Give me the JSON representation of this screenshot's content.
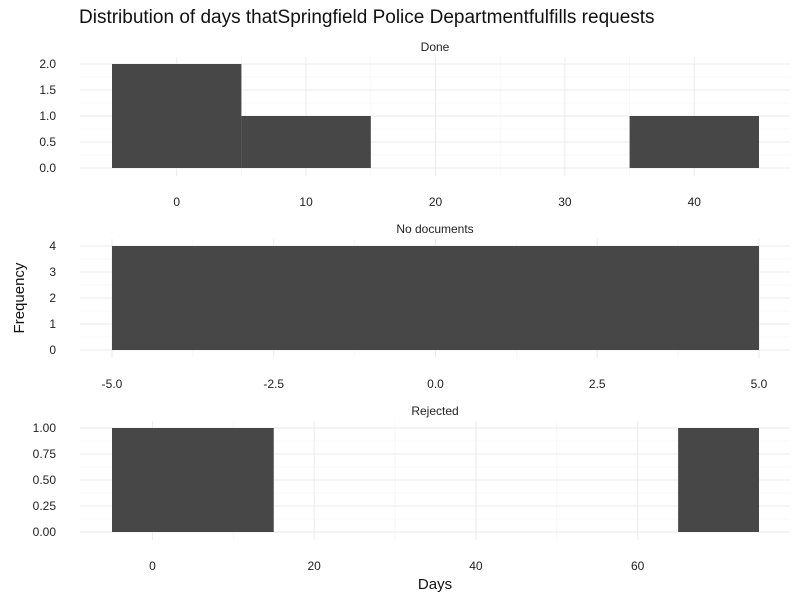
{
  "chart_data": {
    "type": "bar",
    "subtype": "faceted-histogram",
    "title": "Distribution of days thatSpringfield Police Departmentfulfills requests",
    "xlabel": "Days",
    "ylabel": "Frequency",
    "bar_color": "#474747",
    "grid": true,
    "grid_color": "#ebebeb",
    "facets": [
      {
        "name": "Done",
        "bins": [
          {
            "x_start": -5,
            "x_end": 5,
            "count": 2
          },
          {
            "x_start": 5,
            "x_end": 15,
            "count": 1
          },
          {
            "x_start": 35,
            "x_end": 45,
            "count": 1
          }
        ],
        "xlim": [
          -5,
          45
        ],
        "ylim": [
          0,
          2
        ],
        "x_ticks": [
          0,
          10,
          20,
          30,
          40
        ],
        "x_tick_labels": [
          "0",
          "10",
          "20",
          "30",
          "40"
        ],
        "y_ticks": [
          0,
          0.5,
          1,
          1.5,
          2
        ],
        "y_tick_labels": [
          "0.0",
          "0.5",
          "1.0",
          "1.5",
          "2.0"
        ]
      },
      {
        "name": "No documents",
        "bins": [
          {
            "x_start": -5,
            "x_end": 5,
            "count": 4
          }
        ],
        "xlim": [
          -5,
          5
        ],
        "ylim": [
          0,
          4
        ],
        "x_ticks": [
          -5,
          -2.5,
          0,
          2.5,
          5
        ],
        "x_tick_labels": [
          "-5.0",
          "-2.5",
          "0.0",
          "2.5",
          "5.0"
        ],
        "y_ticks": [
          0,
          1,
          2,
          3,
          4
        ],
        "y_tick_labels": [
          "0",
          "1",
          "2",
          "3",
          "4"
        ]
      },
      {
        "name": "Rejected",
        "bins": [
          {
            "x_start": -5,
            "x_end": 15,
            "count": 1
          },
          {
            "x_start": 65,
            "x_end": 75,
            "count": 1
          }
        ],
        "xlim": [
          -5,
          75
        ],
        "ylim": [
          0,
          1
        ],
        "x_ticks": [
          0,
          20,
          40,
          60
        ],
        "x_tick_labels": [
          "0",
          "20",
          "40",
          "60"
        ],
        "y_ticks": [
          0,
          0.25,
          0.5,
          0.75,
          1
        ],
        "y_tick_labels": [
          "0.00",
          "0.25",
          "0.50",
          "0.75",
          "1.00"
        ]
      }
    ]
  }
}
